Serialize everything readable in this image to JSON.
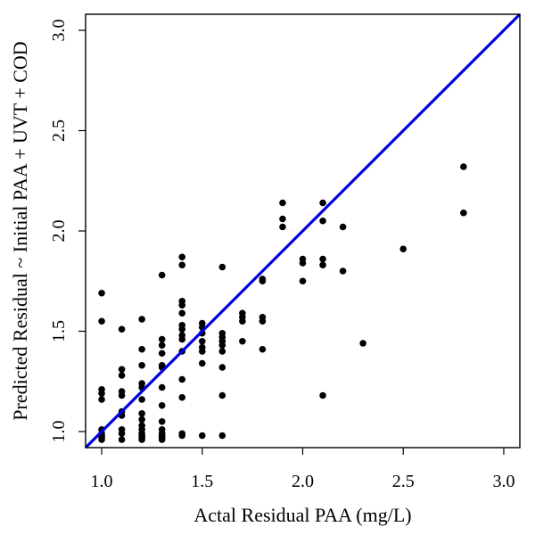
{
  "chart_data": {
    "type": "scatter",
    "title": "",
    "xlabel": "Actal Residual PAA (mg/L)",
    "ylabel": "Predicted Residual ~ Initial PAA + UVT + COD",
    "xlim": [
      0.92,
      3.08
    ],
    "ylim": [
      0.92,
      3.08
    ],
    "xticks": [
      "1.0",
      "1.5",
      "2.0",
      "2.5",
      "3.0"
    ],
    "yticks": [
      "1.0",
      "1.5",
      "2.0",
      "2.5",
      "3.0"
    ],
    "grid": false,
    "reference_line": {
      "label": "y = x",
      "color": "#0000dd"
    },
    "point_color": "#000000",
    "points": [
      {
        "x": 1.0,
        "y": 1.69
      },
      {
        "x": 1.0,
        "y": 1.55
      },
      {
        "x": 1.0,
        "y": 1.21
      },
      {
        "x": 1.0,
        "y": 1.19
      },
      {
        "x": 1.0,
        "y": 1.16
      },
      {
        "x": 1.0,
        "y": 1.01
      },
      {
        "x": 1.0,
        "y": 0.99
      },
      {
        "x": 1.0,
        "y": 0.98
      },
      {
        "x": 1.0,
        "y": 0.97
      },
      {
        "x": 1.0,
        "y": 0.96
      },
      {
        "x": 1.1,
        "y": 1.51
      },
      {
        "x": 1.1,
        "y": 1.31
      },
      {
        "x": 1.1,
        "y": 1.28
      },
      {
        "x": 1.1,
        "y": 1.2
      },
      {
        "x": 1.1,
        "y": 1.18
      },
      {
        "x": 1.1,
        "y": 1.1
      },
      {
        "x": 1.1,
        "y": 1.08
      },
      {
        "x": 1.1,
        "y": 1.01
      },
      {
        "x": 1.1,
        "y": 0.99
      },
      {
        "x": 1.1,
        "y": 0.96
      },
      {
        "x": 1.2,
        "y": 1.56
      },
      {
        "x": 1.2,
        "y": 1.41
      },
      {
        "x": 1.2,
        "y": 1.33
      },
      {
        "x": 1.2,
        "y": 1.24
      },
      {
        "x": 1.2,
        "y": 1.22
      },
      {
        "x": 1.2,
        "y": 1.16
      },
      {
        "x": 1.2,
        "y": 1.09
      },
      {
        "x": 1.2,
        "y": 1.06
      },
      {
        "x": 1.2,
        "y": 1.03
      },
      {
        "x": 1.2,
        "y": 1.01
      },
      {
        "x": 1.2,
        "y": 0.99
      },
      {
        "x": 1.2,
        "y": 0.98
      },
      {
        "x": 1.2,
        "y": 0.97
      },
      {
        "x": 1.2,
        "y": 0.96
      },
      {
        "x": 1.3,
        "y": 1.78
      },
      {
        "x": 1.3,
        "y": 1.46
      },
      {
        "x": 1.3,
        "y": 1.43
      },
      {
        "x": 1.3,
        "y": 1.39
      },
      {
        "x": 1.3,
        "y": 1.33
      },
      {
        "x": 1.3,
        "y": 1.32
      },
      {
        "x": 1.3,
        "y": 1.22
      },
      {
        "x": 1.3,
        "y": 1.13
      },
      {
        "x": 1.3,
        "y": 1.05
      },
      {
        "x": 1.3,
        "y": 1.01
      },
      {
        "x": 1.3,
        "y": 0.99
      },
      {
        "x": 1.3,
        "y": 0.98
      },
      {
        "x": 1.3,
        "y": 0.97
      },
      {
        "x": 1.3,
        "y": 0.96
      },
      {
        "x": 1.4,
        "y": 1.87
      },
      {
        "x": 1.4,
        "y": 1.83
      },
      {
        "x": 1.4,
        "y": 1.65
      },
      {
        "x": 1.4,
        "y": 1.63
      },
      {
        "x": 1.4,
        "y": 1.59
      },
      {
        "x": 1.4,
        "y": 1.53
      },
      {
        "x": 1.4,
        "y": 1.51
      },
      {
        "x": 1.4,
        "y": 1.48
      },
      {
        "x": 1.4,
        "y": 1.46
      },
      {
        "x": 1.4,
        "y": 1.4
      },
      {
        "x": 1.4,
        "y": 1.26
      },
      {
        "x": 1.4,
        "y": 1.17
      },
      {
        "x": 1.4,
        "y": 0.99
      },
      {
        "x": 1.4,
        "y": 0.98
      },
      {
        "x": 1.5,
        "y": 1.54
      },
      {
        "x": 1.5,
        "y": 1.52
      },
      {
        "x": 1.5,
        "y": 1.49
      },
      {
        "x": 1.5,
        "y": 1.45
      },
      {
        "x": 1.5,
        "y": 1.42
      },
      {
        "x": 1.5,
        "y": 1.4
      },
      {
        "x": 1.5,
        "y": 1.34
      },
      {
        "x": 1.5,
        "y": 0.98
      },
      {
        "x": 1.6,
        "y": 1.82
      },
      {
        "x": 1.6,
        "y": 1.49
      },
      {
        "x": 1.6,
        "y": 1.47
      },
      {
        "x": 1.6,
        "y": 1.45
      },
      {
        "x": 1.6,
        "y": 1.43
      },
      {
        "x": 1.6,
        "y": 1.4
      },
      {
        "x": 1.6,
        "y": 1.32
      },
      {
        "x": 1.6,
        "y": 1.18
      },
      {
        "x": 1.6,
        "y": 0.98
      },
      {
        "x": 1.7,
        "y": 1.59
      },
      {
        "x": 1.7,
        "y": 1.57
      },
      {
        "x": 1.7,
        "y": 1.55
      },
      {
        "x": 1.7,
        "y": 1.45
      },
      {
        "x": 1.8,
        "y": 1.76
      },
      {
        "x": 1.8,
        "y": 1.75
      },
      {
        "x": 1.8,
        "y": 1.57
      },
      {
        "x": 1.8,
        "y": 1.55
      },
      {
        "x": 1.8,
        "y": 1.41
      },
      {
        "x": 1.9,
        "y": 2.14
      },
      {
        "x": 1.9,
        "y": 2.06
      },
      {
        "x": 1.9,
        "y": 2.02
      },
      {
        "x": 2.0,
        "y": 1.86
      },
      {
        "x": 2.0,
        "y": 1.84
      },
      {
        "x": 2.0,
        "y": 1.75
      },
      {
        "x": 2.1,
        "y": 2.14
      },
      {
        "x": 2.1,
        "y": 2.05
      },
      {
        "x": 2.1,
        "y": 1.86
      },
      {
        "x": 2.1,
        "y": 1.83
      },
      {
        "x": 2.1,
        "y": 1.18
      },
      {
        "x": 2.2,
        "y": 2.02
      },
      {
        "x": 2.2,
        "y": 1.8
      },
      {
        "x": 2.3,
        "y": 1.44
      },
      {
        "x": 2.5,
        "y": 1.91
      },
      {
        "x": 2.8,
        "y": 2.32
      },
      {
        "x": 2.8,
        "y": 2.09
      }
    ]
  }
}
